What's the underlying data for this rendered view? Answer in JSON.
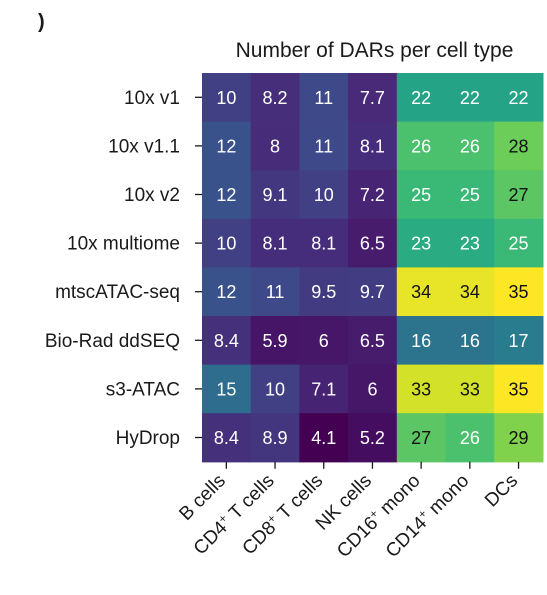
{
  "panel_letter": ")",
  "chart_data": {
    "type": "heatmap",
    "title": "Number of DARs per cell type",
    "rows": [
      "10x v1",
      "10x v1.1",
      "10x v2",
      "10x multiome",
      "mtscATAC-seq",
      "Bio-Rad ddSEQ",
      "s3-ATAC",
      "HyDrop"
    ],
    "columns": [
      {
        "base": "B cells",
        "sup": "",
        "rest": ""
      },
      {
        "base": "CD4",
        "sup": "+",
        "rest": " T cells"
      },
      {
        "base": "CD8",
        "sup": "+",
        "rest": " T cells"
      },
      {
        "base": "NK cells",
        "sup": "",
        "rest": ""
      },
      {
        "base": "CD16",
        "sup": "+",
        "rest": " mono"
      },
      {
        "base": "CD14",
        "sup": "+",
        "rest": " mono"
      },
      {
        "base": "DCs",
        "sup": "",
        "rest": ""
      }
    ],
    "values": [
      [
        10,
        8.2,
        11,
        7.7,
        22,
        22,
        22
      ],
      [
        12,
        8,
        11,
        8.1,
        26,
        26,
        28
      ],
      [
        12,
        9.1,
        10,
        7.2,
        25,
        25,
        27
      ],
      [
        10,
        8.1,
        8.1,
        6.5,
        23,
        23,
        25
      ],
      [
        12,
        11,
        9.5,
        9.7,
        34,
        34,
        35
      ],
      [
        8.4,
        5.9,
        6,
        6.5,
        16,
        16,
        17
      ],
      [
        15,
        10,
        7.1,
        6,
        33,
        33,
        35
      ],
      [
        8.4,
        8.9,
        4.1,
        5.2,
        27,
        26,
        29
      ]
    ],
    "colormap": "viridis",
    "colors": {
      "low": "#440154",
      "mid": "#21908c",
      "high": "#fde725",
      "text_on_dark": "#ffffff",
      "text_on_light": "#111111"
    }
  }
}
